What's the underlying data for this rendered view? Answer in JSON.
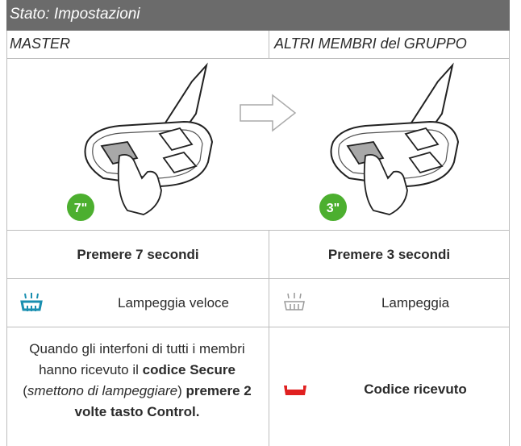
{
  "header": {
    "title": "Stato: Impostazioni"
  },
  "columns": [
    "MASTER",
    "ALTRI MEMBRI del GRUPPO"
  ],
  "illustrations": [
    {
      "badge": "7\""
    },
    {
      "badge": "3\""
    }
  ],
  "rows": [
    [
      "Premere 7 secondi",
      "Premere 3 secondi"
    ],
    [
      "Lampeggia veloce",
      "Lampeggia"
    ]
  ],
  "instruction": {
    "parts": [
      {
        "text": "Quando gli interfoni di tutti i membri hanno ricevuto il ",
        "style": "normal"
      },
      {
        "text": "codice Secure",
        "style": "bold"
      },
      {
        "text": " (",
        "style": "normal"
      },
      {
        "text": "smettono di lampeggiare",
        "style": "italic"
      },
      {
        "text": ") ",
        "style": "normal"
      },
      {
        "text": "premere 2 volte tasto Control.",
        "style": "bold"
      }
    ]
  },
  "status": "Codice ricevuto"
}
